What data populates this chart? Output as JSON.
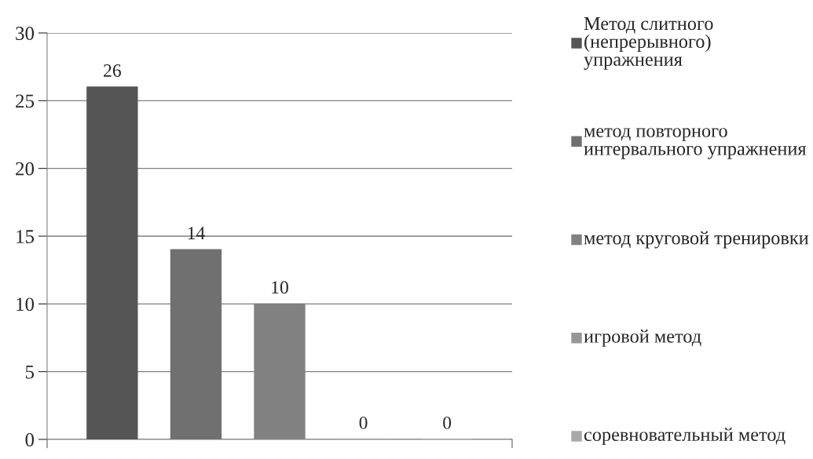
{
  "chart_data": {
    "type": "bar",
    "categories": [
      null
    ],
    "series": [
      {
        "name": "Метод слитного (непрерывного) упражнения",
        "color": "#555555",
        "values": [
          26
        ]
      },
      {
        "name": "метод повторного интервального упражнения",
        "color": "#707070",
        "values": [
          14
        ]
      },
      {
        "name": "метод круговой тренировки",
        "color": "#818181",
        "values": [
          10
        ]
      },
      {
        "name": "игровой метод",
        "color": "#969696",
        "values": [
          0
        ]
      },
      {
        "name": "соревновательный метод",
        "color": "#a9a9a9",
        "values": [
          0
        ]
      }
    ],
    "ylim": [
      0,
      30
    ],
    "yticks": [
      0,
      5,
      10,
      15,
      20,
      25,
      30
    ],
    "grid": "y",
    "legend": "right",
    "data_labels": true
  }
}
